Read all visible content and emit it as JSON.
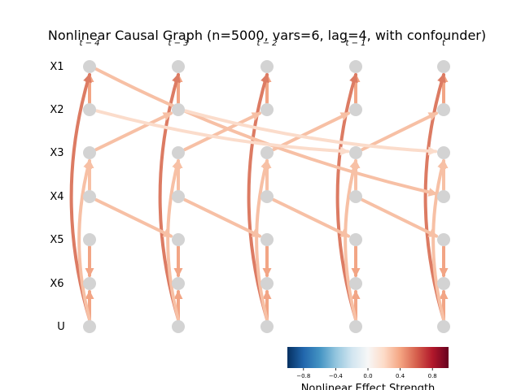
{
  "title": "Nonlinear Causal Graph (n=5000, vars=6, lag=4, with confounder)",
  "variables": [
    "X1",
    "X2",
    "X3",
    "X4",
    "X5",
    "X6",
    "U"
  ],
  "time_steps": [
    "t − 4",
    "t − 3",
    "t − 2",
    "t − 1",
    "t"
  ],
  "colorbar": {
    "label": "Nonlinear Effect Strength",
    "ticks": [
      "−0.8",
      "−0.4",
      "0.0",
      "0.4",
      "0.8"
    ],
    "range": [
      -1.0,
      1.0
    ]
  },
  "colors": {
    "node": "#d3d3d3",
    "strong_positive": "#dc7b63",
    "medium_positive": "#f2a585",
    "weak_positive": "#f7c0a5",
    "very_weak_positive": "#fbdccb"
  },
  "edges": {
    "within_slice": [
      {
        "from": "X2",
        "to": "X1",
        "strength": 0.45
      },
      {
        "from": "X4",
        "to": "X3",
        "strength": 0.3
      },
      {
        "from": "X5",
        "to": "X6",
        "strength": 0.45
      },
      {
        "from": "U",
        "to": "X6",
        "strength": 0.45
      },
      {
        "from": "U",
        "to": "X1",
        "strength": 0.65
      },
      {
        "from": "U",
        "to": "X3",
        "strength": 0.3
      }
    ],
    "lagged": [
      {
        "from": "X3",
        "to": "X2",
        "lag": 1,
        "strength": 0.3
      },
      {
        "from": "X4",
        "to": "X5",
        "lag": 1,
        "strength": 0.3
      },
      {
        "from": "X1",
        "to": "X4",
        "lag": 4,
        "strength": 0.3
      },
      {
        "from": "X2",
        "to": "X3",
        "lag": 3,
        "strength": 0.2
      }
    ]
  }
}
